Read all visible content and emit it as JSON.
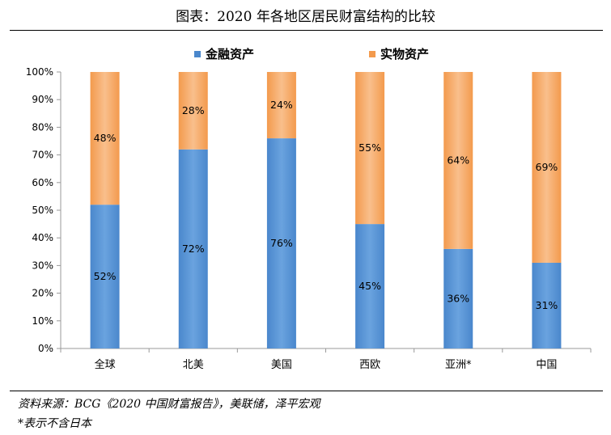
{
  "title": "图表：2020 年各地区居民财富结构的比较",
  "source": "资料来源：BCG《2020 中国财富报告》，美联储，泽平宏观",
  "note": "*表示不含日本",
  "colors": {
    "financial": "#4a87cc",
    "financial_light": "#6aa3df",
    "real": "#f39a4d",
    "real_light": "#f9bf8c",
    "axis": "#999999"
  },
  "chart_data": {
    "type": "bar",
    "stacked": true,
    "categories": [
      "全球",
      "北美",
      "美国",
      "西欧",
      "亚洲*",
      "中国"
    ],
    "series": [
      {
        "name": "金融资产",
        "values": [
          52,
          72,
          76,
          45,
          36,
          31
        ],
        "labels": [
          "52%",
          "72%",
          "76%",
          "45%",
          "36%",
          "31%"
        ]
      },
      {
        "name": "实物资产",
        "values": [
          48,
          28,
          24,
          55,
          64,
          69
        ],
        "labels": [
          "48%",
          "28%",
          "24%",
          "55%",
          "64%",
          "69%"
        ]
      }
    ],
    "ylim": [
      0,
      100
    ],
    "yticks": [
      "0%",
      "10%",
      "20%",
      "30%",
      "40%",
      "50%",
      "60%",
      "70%",
      "80%",
      "90%",
      "100%"
    ],
    "legend_position": "top",
    "grid": false
  }
}
